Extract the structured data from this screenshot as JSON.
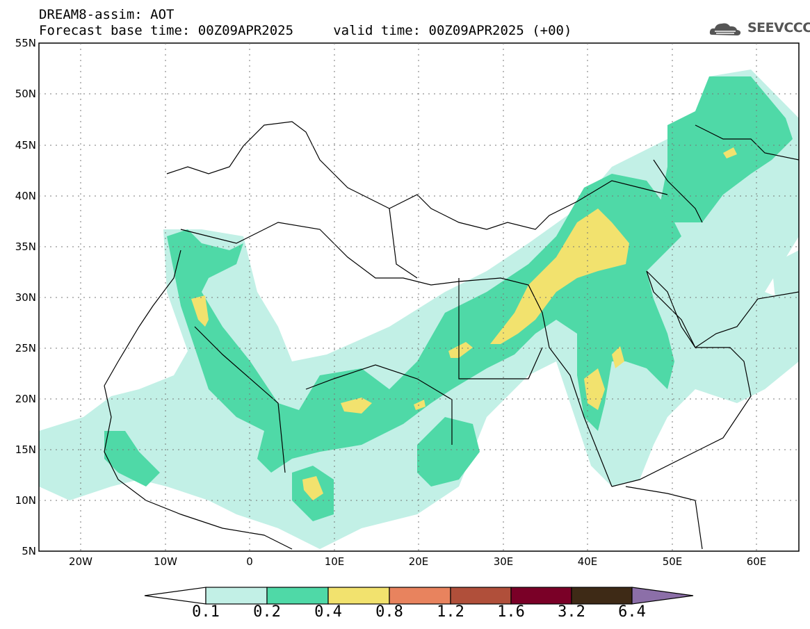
{
  "header": {
    "title_line1": "DREAM8-assim: AOT",
    "title_line2": "Forecast base time: 00Z09APR2025     valid time: 00Z09APR2025 (+00)",
    "logo_text": "SEEVCCC"
  },
  "map": {
    "variable": "AOT",
    "lat_ticks": [
      "55N",
      "50N",
      "45N",
      "40N",
      "35N",
      "30N",
      "25N",
      "20N",
      "15N",
      "10N",
      "5N"
    ],
    "lon_ticks": [
      "20W",
      "10W",
      "0",
      "10E",
      "20E",
      "30E",
      "40E",
      "50E",
      "60E"
    ],
    "lat_range": [
      5,
      55
    ],
    "lon_range": [
      -25,
      65
    ]
  },
  "colorbar": {
    "labels": [
      "0.1",
      "0.2",
      "0.4",
      "0.8",
      "1.2",
      "1.6",
      "3.2",
      "6.4"
    ],
    "colors": [
      "#c2f0e6",
      "#4fd9a7",
      "#f2e26e",
      "#e8835e",
      "#b04f3a",
      "#7a0027",
      "#3e2a16",
      "#8c6fa8"
    ]
  }
}
